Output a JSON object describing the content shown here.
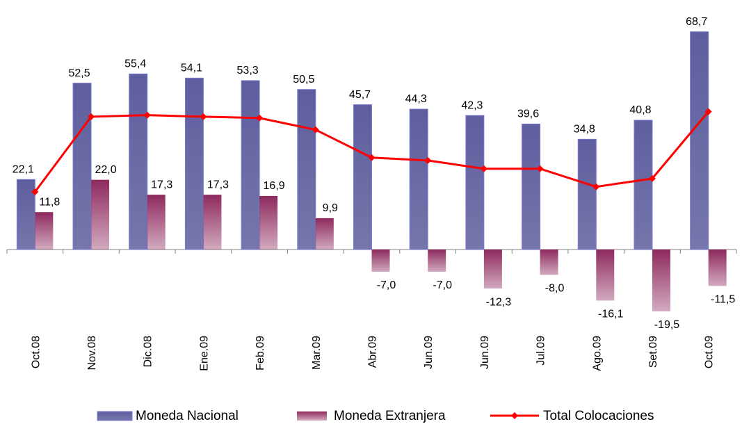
{
  "chart_data": {
    "type": "bar",
    "categories": [
      "Oct.08",
      "Nov.08",
      "Dic.08",
      "Ene.09",
      "Feb.09",
      "Mar.09",
      "Abr.09",
      "Jun.09",
      "Jun.09",
      "Jul.09",
      "Ago.09",
      "Set.09",
      "Oct.09"
    ],
    "series": [
      {
        "name": "Moneda Nacional",
        "color": "#5e5e9e",
        "type": "bar",
        "values": [
          22.1,
          52.5,
          55.4,
          54.1,
          53.3,
          50.5,
          45.7,
          44.3,
          42.3,
          39.6,
          34.8,
          40.8,
          68.7
        ],
        "value_labels": [
          "22,1",
          "52,5",
          "55,4",
          "54,1",
          "53,3",
          "50,5",
          "45,7",
          "44,3",
          "42,3",
          "39,6",
          "34,8",
          "40,8",
          "68,7"
        ]
      },
      {
        "name": "Moneda Extranjera",
        "color": "#8e2a5e",
        "type": "bar",
        "values": [
          11.8,
          22.0,
          17.3,
          17.3,
          16.9,
          9.9,
          -7.0,
          -7.0,
          -12.3,
          -8.0,
          -16.1,
          -19.5,
          -11.5
        ],
        "value_labels": [
          "11,8",
          "22,0",
          "17,3",
          "17,3",
          "16,9",
          "9,9",
          "-7,0",
          "-7,0",
          "-12,3",
          "-8,0",
          "-16,1",
          "-19,5",
          "-11,5"
        ]
      },
      {
        "name": "Total Colocaciones",
        "color": "#ff0000",
        "type": "line",
        "values": [
          18.2,
          41.9,
          42.4,
          41.9,
          41.5,
          37.8,
          29.0,
          28.1,
          25.5,
          25.5,
          19.8,
          22.4,
          43.5
        ]
      }
    ],
    "ylim": [
      -25,
      75
    ],
    "grid": false
  }
}
